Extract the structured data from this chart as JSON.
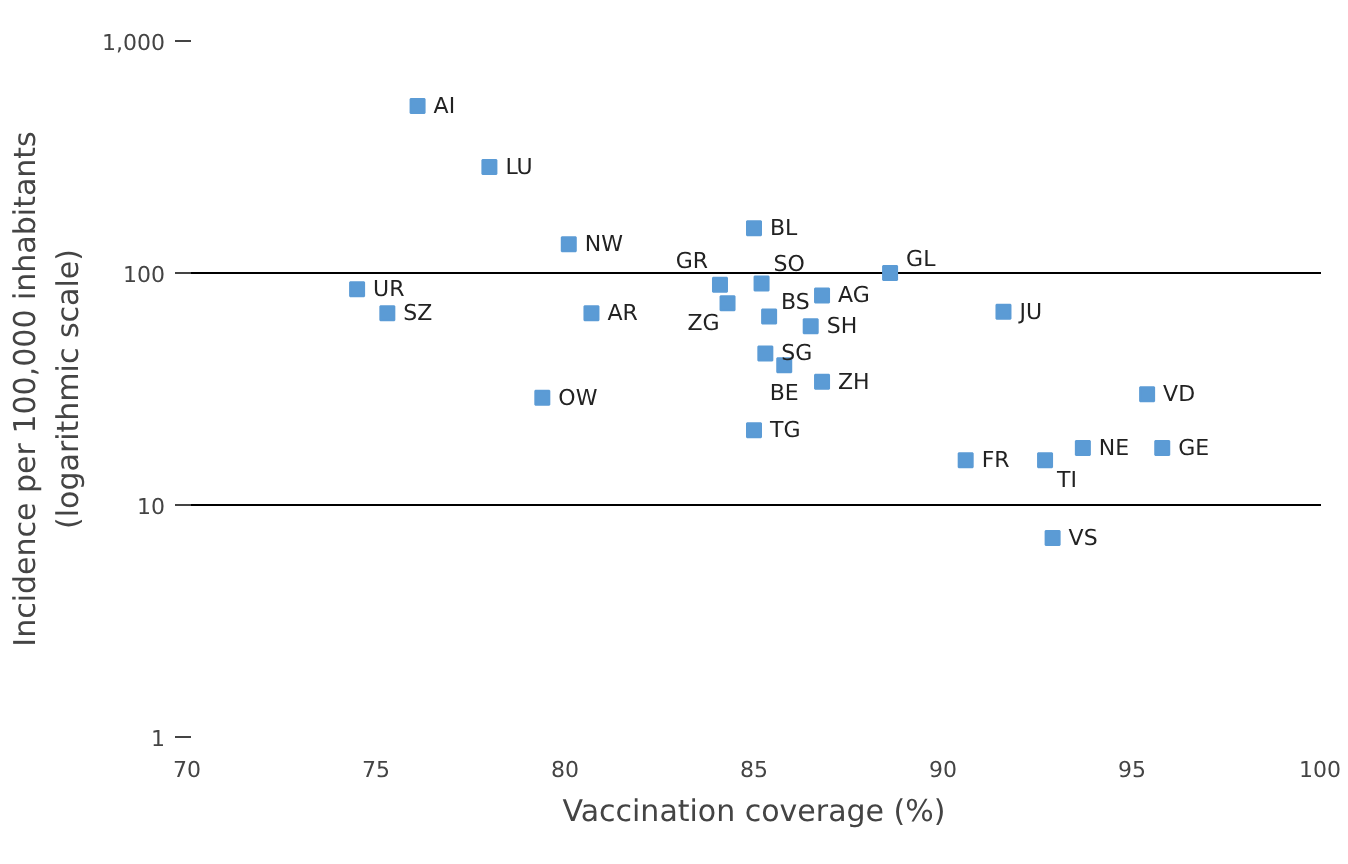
{
  "chart_data": {
    "type": "scatter",
    "xlabel": "Vaccination coverage (%)",
    "ylabel": "Incidence per 100,000 inhabitants\n(logarithmic scale)",
    "x": [
      76.1,
      78.0,
      80.1,
      74.5,
      75.3,
      80.7,
      79.4,
      85.0,
      84.1,
      85.2,
      84.3,
      85.4,
      86.8,
      86.5,
      85.3,
      85.8,
      86.8,
      85.0,
      88.6,
      91.6,
      95.4,
      90.6,
      92.7,
      93.7,
      95.8,
      92.9
    ],
    "values": [
      525,
      286,
      133,
      85,
      67,
      67,
      29,
      156,
      89,
      90,
      74,
      65,
      80,
      59,
      45,
      40,
      34,
      21,
      100,
      68,
      30,
      15.6,
      15.6,
      17.6,
      17.6,
      7.2
    ],
    "annotations": [
      {
        "text": "AI",
        "x": 76.1,
        "y": 525
      },
      {
        "text": "LU",
        "x": 78.0,
        "y": 286
      },
      {
        "text": "NW",
        "x": 80.1,
        "y": 133
      },
      {
        "text": "UR",
        "x": 74.5,
        "y": 85
      },
      {
        "text": "SZ",
        "x": 75.3,
        "y": 67
      },
      {
        "text": "AR",
        "x": 80.7,
        "y": 67
      },
      {
        "text": "OW",
        "x": 79.4,
        "y": 29
      },
      {
        "text": "BL",
        "x": 85.0,
        "y": 156
      },
      {
        "text": "GR",
        "x": 84.1,
        "y": 89
      },
      {
        "text": "SO",
        "x": 85.2,
        "y": 90
      },
      {
        "text": "ZG",
        "x": 84.3,
        "y": 74
      },
      {
        "text": "BS",
        "x": 85.4,
        "y": 65
      },
      {
        "text": "AG",
        "x": 86.8,
        "y": 80
      },
      {
        "text": "SH",
        "x": 86.5,
        "y": 59
      },
      {
        "text": "SG",
        "x": 85.3,
        "y": 45
      },
      {
        "text": "BE",
        "x": 85.8,
        "y": 40
      },
      {
        "text": "ZH",
        "x": 86.8,
        "y": 34
      },
      {
        "text": "TG",
        "x": 85.0,
        "y": 21
      },
      {
        "text": "GL",
        "x": 88.6,
        "y": 100
      },
      {
        "text": "JU",
        "x": 91.6,
        "y": 68
      },
      {
        "text": "VD",
        "x": 95.4,
        "y": 30
      },
      {
        "text": "FR",
        "x": 90.6,
        "y": 15.6
      },
      {
        "text": "TI",
        "x": 92.7,
        "y": 15.6
      },
      {
        "text": "NE",
        "x": 93.7,
        "y": 17.6
      },
      {
        "text": "GE",
        "x": 95.8,
        "y": 17.6
      },
      {
        "text": "VS",
        "x": 92.9,
        "y": 7.2
      }
    ],
    "color": "#5b9bd5",
    "marker": "square",
    "log": "y",
    "grid": "y",
    "xlim": [
      70,
      100
    ],
    "xticks": [
      70,
      75,
      80,
      85,
      90,
      95,
      100
    ],
    "ylim": [
      1,
      1000
    ],
    "yticks": [
      1,
      10,
      100,
      {
        "value": 1000,
        "label": "1,000"
      }
    ]
  }
}
